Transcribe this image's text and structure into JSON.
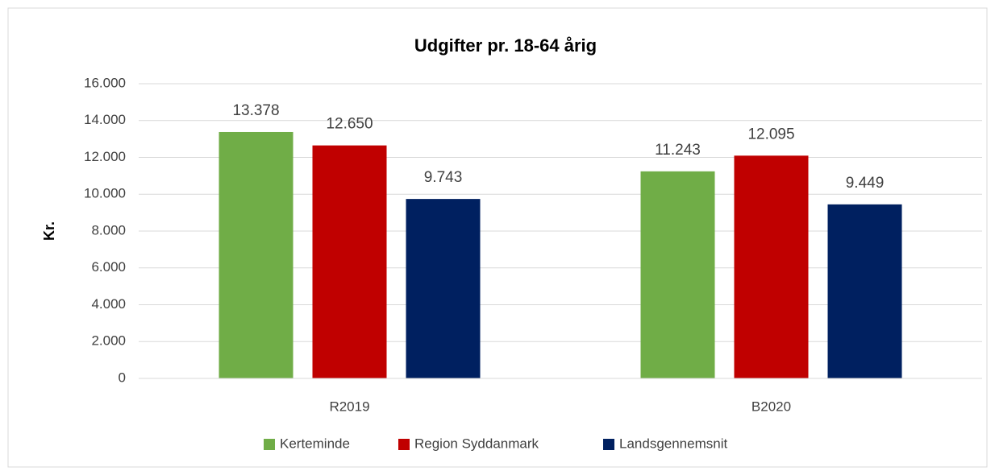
{
  "chart_data": {
    "type": "bar",
    "title": "Udgifter pr. 18-64 årig",
    "y_label": "Kr.",
    "categories": [
      "R2019",
      "B2020"
    ],
    "series": [
      {
        "name": "Kerteminde",
        "color": "#70ad47",
        "values": [
          13378,
          11243
        ],
        "value_labels": [
          "13.378",
          "11.243"
        ]
      },
      {
        "name": "Region Syddanmark",
        "color": "#c00000",
        "values": [
          12650,
          12095
        ],
        "value_labels": [
          "12.650",
          "12.095"
        ]
      },
      {
        "name": "Landsgennemsnit",
        "color": "#002060",
        "values": [
          9743,
          9449
        ],
        "value_labels": [
          "9.743",
          "9.449"
        ]
      }
    ],
    "ylim": [
      0,
      16000
    ],
    "yticks": [
      0,
      {
        "value": 2000,
        "label": "2.000"
      },
      {
        "value": 4000,
        "label": "4.000"
      },
      {
        "value": 6000,
        "label": "6.000"
      },
      {
        "value": 8000,
        "label": "8.000"
      },
      {
        "value": 10000,
        "label": "10.000"
      },
      {
        "value": 12000,
        "label": "12.000"
      },
      {
        "value": 14000,
        "label": "14.000"
      },
      {
        "value": 16000,
        "label": "16.000"
      }
    ],
    "grid": true,
    "legend": "bottom"
  }
}
